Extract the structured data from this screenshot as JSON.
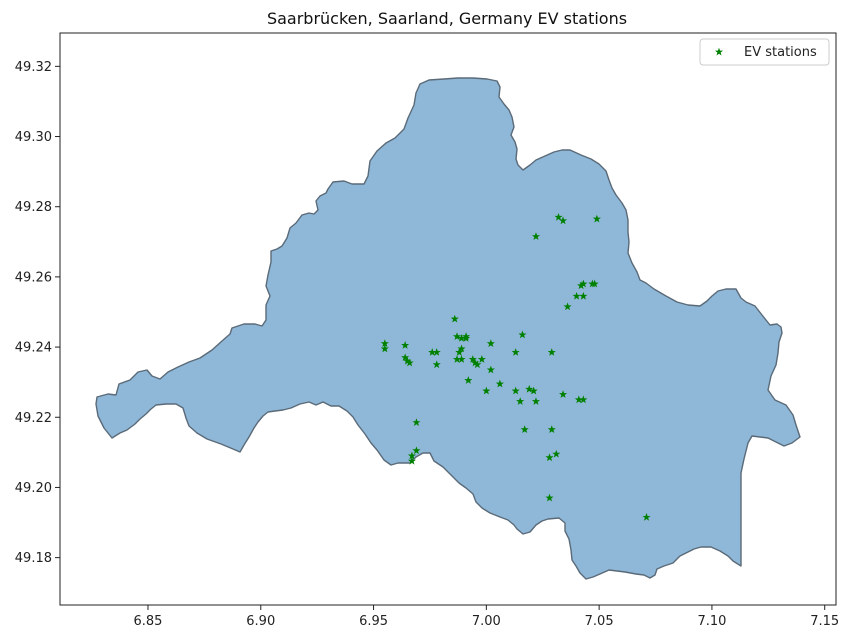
{
  "chart_data": {
    "type": "scatter",
    "title": "Saarbrücken, Saarland, Germany EV stations",
    "xlabel": "",
    "ylabel": "",
    "xlim": [
      6.811,
      7.155
    ],
    "ylim": [
      49.1665,
      49.3295
    ],
    "x_ticks": [
      6.85,
      6.9,
      6.95,
      7.0,
      7.05,
      7.1,
      7.15
    ],
    "x_tick_labels": [
      "6.85",
      "6.90",
      "6.95",
      "7.00",
      "7.05",
      "7.10",
      "7.15"
    ],
    "y_ticks": [
      49.18,
      49.2,
      49.22,
      49.24,
      49.26,
      49.28,
      49.3,
      49.32
    ],
    "y_tick_labels": [
      "49.18",
      "49.20",
      "49.22",
      "49.24",
      "49.26",
      "49.28",
      "49.30",
      "49.32"
    ],
    "grid": false,
    "legend_position": "top-right",
    "region_fill": "#8fb8d8",
    "region_edge": "#5a6a78",
    "series": [
      {
        "name": "EV stations",
        "color": "#008000",
        "marker": "star",
        "points": [
          [
            6.955,
            49.241
          ],
          [
            6.955,
            49.2395
          ],
          [
            6.964,
            49.2405
          ],
          [
            6.964,
            49.237
          ],
          [
            6.965,
            49.236
          ],
          [
            6.966,
            49.2355
          ],
          [
            6.976,
            49.2385
          ],
          [
            6.978,
            49.2385
          ],
          [
            6.978,
            49.235
          ],
          [
            6.986,
            49.248
          ],
          [
            6.987,
            49.243
          ],
          [
            6.989,
            49.2425
          ],
          [
            6.991,
            49.243
          ],
          [
            6.991,
            49.2425
          ],
          [
            6.989,
            49.2395
          ],
          [
            6.988,
            49.2385
          ],
          [
            6.987,
            49.2365
          ],
          [
            6.989,
            49.2365
          ],
          [
            6.994,
            49.2365
          ],
          [
            6.996,
            49.235
          ],
          [
            6.998,
            49.2365
          ],
          [
            6.995,
            49.2355
          ],
          [
            7.002,
            49.241
          ],
          [
            7.002,
            49.2335
          ],
          [
            6.992,
            49.2305
          ],
          [
            7.0,
            49.2275
          ],
          [
            7.006,
            49.2295
          ],
          [
            7.013,
            49.2385
          ],
          [
            7.016,
            49.2435
          ],
          [
            7.013,
            49.2275
          ],
          [
            7.015,
            49.2245
          ],
          [
            7.019,
            49.228
          ],
          [
            7.021,
            49.2275
          ],
          [
            7.022,
            49.2245
          ],
          [
            7.029,
            49.2385
          ],
          [
            7.034,
            49.2265
          ],
          [
            7.041,
            49.225
          ],
          [
            7.043,
            49.225
          ],
          [
            7.036,
            49.2515
          ],
          [
            7.04,
            49.2545
          ],
          [
            7.043,
            49.2545
          ],
          [
            7.042,
            49.2575
          ],
          [
            7.043,
            49.258
          ],
          [
            7.047,
            49.258
          ],
          [
            7.048,
            49.258
          ],
          [
            7.032,
            49.277
          ],
          [
            7.034,
            49.276
          ],
          [
            7.049,
            49.2765
          ],
          [
            7.022,
            49.2715
          ],
          [
            6.969,
            49.2185
          ],
          [
            6.969,
            49.2105
          ],
          [
            6.967,
            49.209
          ],
          [
            6.967,
            49.2075
          ],
          [
            7.017,
            49.2165
          ],
          [
            7.029,
            49.2165
          ],
          [
            7.028,
            49.2085
          ],
          [
            7.031,
            49.2095
          ],
          [
            7.028,
            49.197
          ],
          [
            7.071,
            49.1915
          ]
        ]
      }
    ]
  }
}
